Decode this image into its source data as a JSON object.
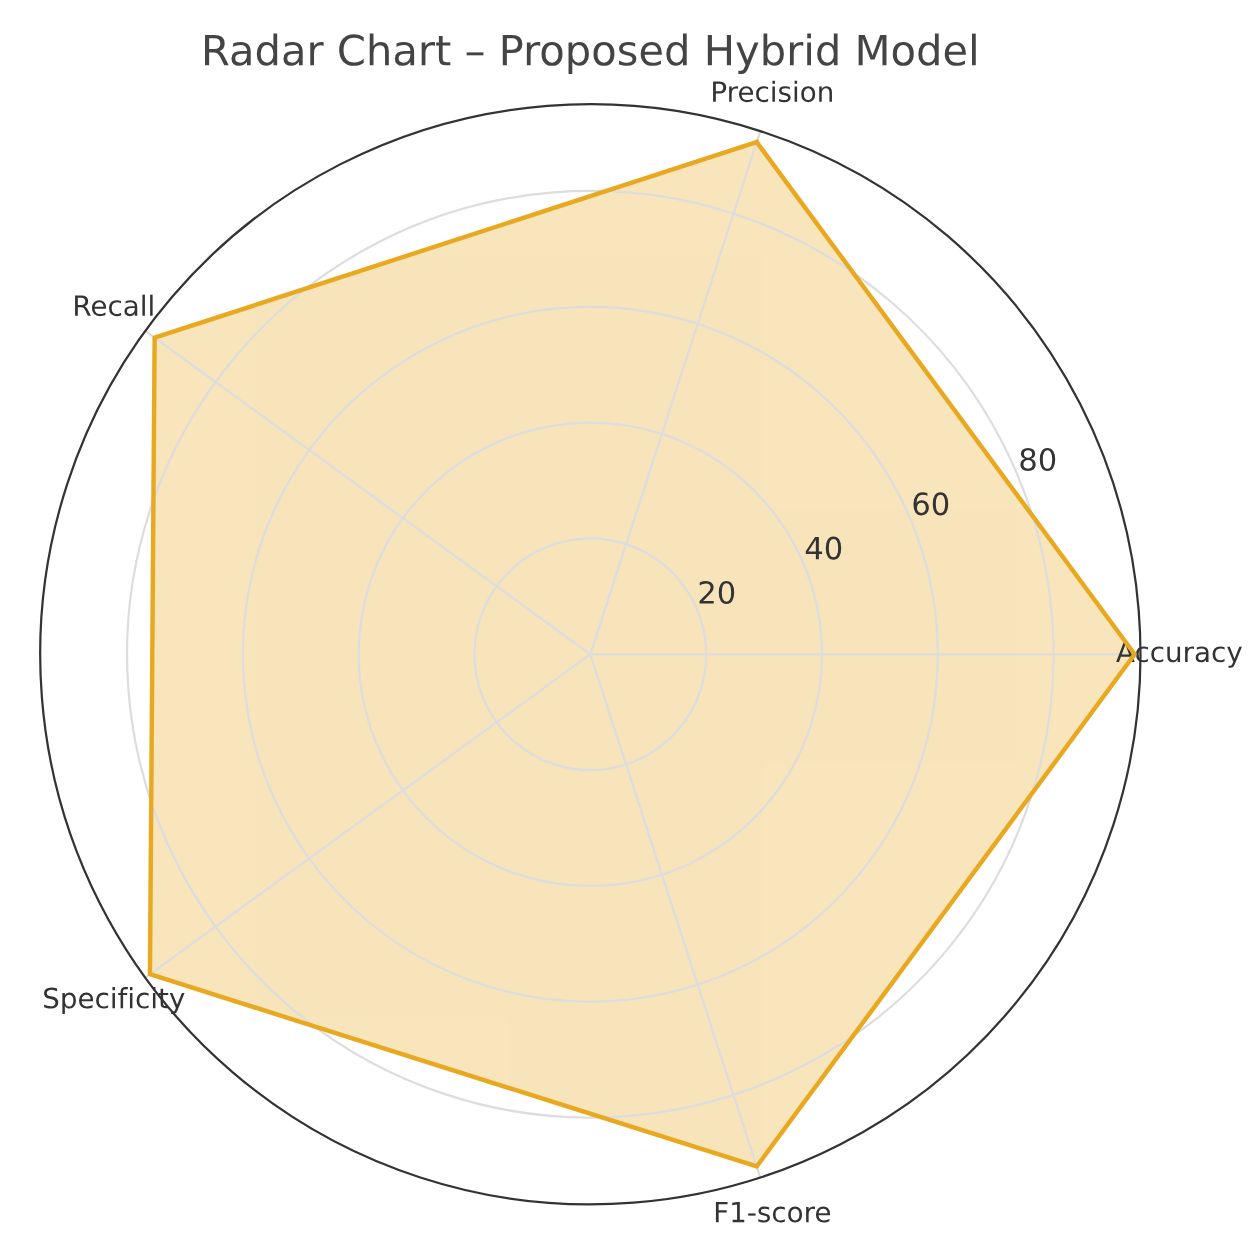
{
  "chart_data": {
    "type": "radar",
    "title": "Radar Chart – Proposed Hybrid Model",
    "categories": [
      "Precision",
      "Accuracy",
      "F1-score",
      "Specificity",
      "Recall"
    ],
    "series": [
      {
        "color": "#e8a820",
        "values": [
          93,
          94,
          93,
          94,
          93
        ]
      }
    ],
    "ylim": [
      0,
      95
    ],
    "yticks": [
      20,
      40,
      60,
      80
    ],
    "grid": true
  }
}
